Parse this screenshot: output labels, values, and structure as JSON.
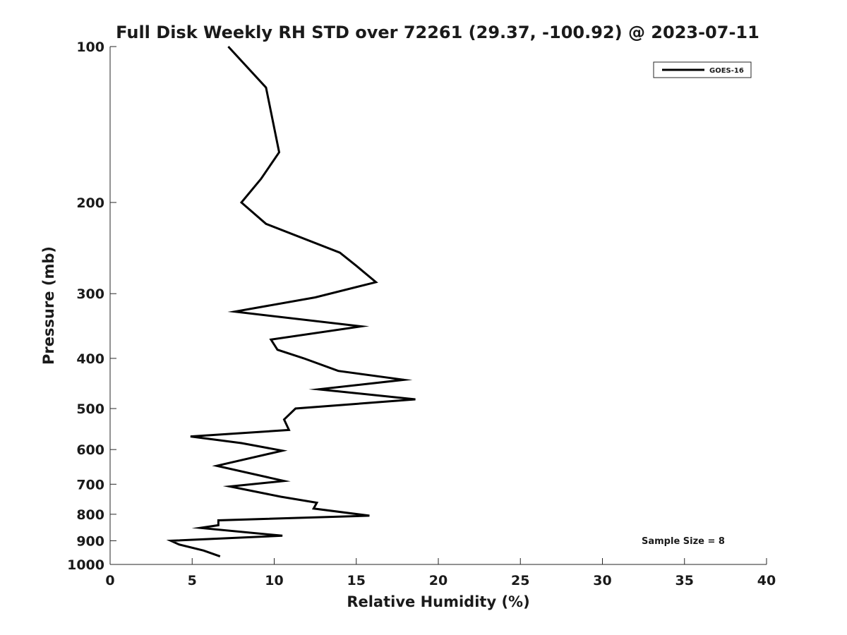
{
  "chart_data": {
    "type": "line",
    "title": "Full Disk Weekly RH STD over 72261 (29.37, -100.92) @ 2023-07-11",
    "xlabel": "Relative Humidity (%)",
    "ylabel": "Pressure (mb)",
    "xlim": [
      0,
      40
    ],
    "ylim": [
      100,
      1000
    ],
    "yscale": "log-reversed",
    "grid": false,
    "x_ticks": [
      0,
      5,
      10,
      15,
      20,
      25,
      30,
      35,
      40
    ],
    "y_ticks": [
      100,
      200,
      300,
      400,
      500,
      600,
      700,
      800,
      900,
      1000
    ],
    "legend": {
      "placement": "top-right",
      "entries": [
        "GOES-16"
      ]
    },
    "annotations": [
      "Sample Size = 8"
    ],
    "series": [
      {
        "name": "GOES-16",
        "color": "#000000",
        "points": [
          {
            "rh": 7.2,
            "p": 100
          },
          {
            "rh": 9.5,
            "p": 120
          },
          {
            "rh": 10.3,
            "p": 160
          },
          {
            "rh": 9.2,
            "p": 180
          },
          {
            "rh": 8.0,
            "p": 200
          },
          {
            "rh": 9.5,
            "p": 220
          },
          {
            "rh": 14.0,
            "p": 250
          },
          {
            "rh": 15.0,
            "p": 265
          },
          {
            "rh": 16.2,
            "p": 285
          },
          {
            "rh": 12.5,
            "p": 305
          },
          {
            "rh": 7.6,
            "p": 325
          },
          {
            "rh": 15.3,
            "p": 347
          },
          {
            "rh": 9.8,
            "p": 368
          },
          {
            "rh": 10.2,
            "p": 385
          },
          {
            "rh": 11.8,
            "p": 400
          },
          {
            "rh": 13.9,
            "p": 423
          },
          {
            "rh": 17.9,
            "p": 440
          },
          {
            "rh": 12.7,
            "p": 459
          },
          {
            "rh": 18.6,
            "p": 480
          },
          {
            "rh": 11.3,
            "p": 500
          },
          {
            "rh": 10.6,
            "p": 525
          },
          {
            "rh": 10.9,
            "p": 550
          },
          {
            "rh": 4.9,
            "p": 566
          },
          {
            "rh": 8.0,
            "p": 583
          },
          {
            "rh": 10.5,
            "p": 603
          },
          {
            "rh": 6.5,
            "p": 645
          },
          {
            "rh": 10.6,
            "p": 690
          },
          {
            "rh": 7.3,
            "p": 707
          },
          {
            "rh": 10.4,
            "p": 740
          },
          {
            "rh": 12.6,
            "p": 760
          },
          {
            "rh": 12.4,
            "p": 780
          },
          {
            "rh": 15.8,
            "p": 805
          },
          {
            "rh": 6.6,
            "p": 822
          },
          {
            "rh": 6.6,
            "p": 840
          },
          {
            "rh": 5.5,
            "p": 850
          },
          {
            "rh": 10.5,
            "p": 880
          },
          {
            "rh": 3.7,
            "p": 900
          },
          {
            "rh": 4.2,
            "p": 915
          },
          {
            "rh": 5.7,
            "p": 940
          },
          {
            "rh": 6.7,
            "p": 965
          }
        ]
      }
    ]
  }
}
